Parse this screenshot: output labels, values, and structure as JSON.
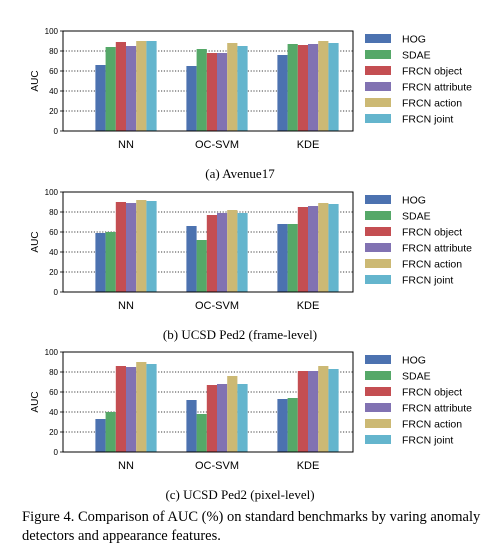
{
  "colors": [
    "#4c72b0",
    "#55a868",
    "#c44e52",
    "#8172b2",
    "#ccb974",
    "#64b5cd"
  ],
  "caption": "Figure 4. Comparison of AUC (%) on standard benchmarks by varing anomaly detectors and appearance features.",
  "chart_data": [
    {
      "type": "bar",
      "title": "(a) Avenue17",
      "ylabel": "AUC",
      "ylim": [
        0,
        100
      ],
      "yticks": [
        0,
        20,
        40,
        60,
        80,
        100
      ],
      "grid": "horizontal dotted",
      "legend_position": "right",
      "categories": [
        "NN",
        "OC-SVM",
        "KDE"
      ],
      "series": [
        {
          "name": "HOG",
          "values": [
            66,
            65,
            76
          ]
        },
        {
          "name": "SDAE",
          "values": [
            84,
            82,
            87
          ]
        },
        {
          "name": "FRCN object",
          "values": [
            89,
            78,
            86
          ]
        },
        {
          "name": "FRCN attribute",
          "values": [
            85,
            78,
            87
          ]
        },
        {
          "name": "FRCN action",
          "values": [
            90,
            88,
            90
          ]
        },
        {
          "name": "FRCN joint",
          "values": [
            90,
            85,
            88
          ]
        }
      ]
    },
    {
      "type": "bar",
      "title": "(b) UCSD Ped2 (frame-level)",
      "ylabel": "AUC",
      "ylim": [
        0,
        100
      ],
      "yticks": [
        0,
        20,
        40,
        60,
        80,
        100
      ],
      "grid": "horizontal dotted",
      "legend_position": "right",
      "categories": [
        "NN",
        "OC-SVM",
        "KDE"
      ],
      "series": [
        {
          "name": "HOG",
          "values": [
            59,
            66,
            68
          ]
        },
        {
          "name": "SDAE",
          "values": [
            60,
            52,
            68
          ]
        },
        {
          "name": "FRCN object",
          "values": [
            90,
            77,
            85
          ]
        },
        {
          "name": "FRCN attribute",
          "values": [
            89,
            79,
            86
          ]
        },
        {
          "name": "FRCN action",
          "values": [
            92,
            82,
            89
          ]
        },
        {
          "name": "FRCN joint",
          "values": [
            91,
            79,
            88
          ]
        }
      ]
    },
    {
      "type": "bar",
      "title": "(c) UCSD Ped2 (pixel-level)",
      "ylabel": "AUC",
      "ylim": [
        0,
        100
      ],
      "yticks": [
        0,
        20,
        40,
        60,
        80,
        100
      ],
      "grid": "horizontal dotted",
      "legend_position": "right",
      "categories": [
        "NN",
        "OC-SVM",
        "KDE"
      ],
      "series": [
        {
          "name": "HOG",
          "values": [
            33,
            52,
            53
          ]
        },
        {
          "name": "SDAE",
          "values": [
            40,
            38,
            54
          ]
        },
        {
          "name": "FRCN object",
          "values": [
            86,
            67,
            81
          ]
        },
        {
          "name": "FRCN attribute",
          "values": [
            85,
            68,
            81
          ]
        },
        {
          "name": "FRCN action",
          "values": [
            90,
            76,
            86
          ]
        },
        {
          "name": "FRCN joint",
          "values": [
            88,
            68,
            83
          ]
        }
      ]
    }
  ]
}
